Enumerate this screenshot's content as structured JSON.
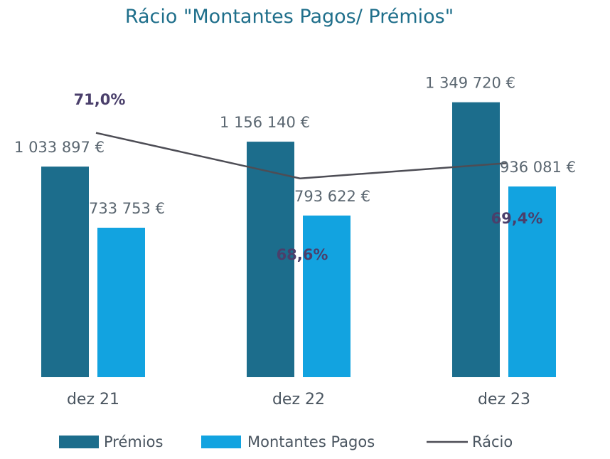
{
  "chart_data": {
    "type": "bar",
    "title": "Rácio \"Montantes Pagos/ Prémios\"",
    "categories": [
      "dez 21",
      "dez 22",
      "dez 23"
    ],
    "series": [
      {
        "name": "Prémios",
        "kind": "bar",
        "color": "#1c6d8c",
        "values": [
          1033897,
          1156140,
          1349720
        ],
        "labels": [
          "1 033 897 €",
          "1 156 140 €",
          "1 349 720 €"
        ]
      },
      {
        "name": "Montantes Pagos",
        "kind": "bar",
        "color": "#12a3e0",
        "values": [
          733753,
          793622,
          936081
        ],
        "labels": [
          "733 753 €",
          "793 622 €",
          "936 081 €"
        ]
      },
      {
        "name": "Rácio",
        "kind": "line",
        "color": "#4d4d55",
        "values": [
          71.0,
          68.6,
          69.4
        ],
        "labels": [
          "71,0%",
          "68,6%",
          "69,4%"
        ]
      }
    ],
    "ylim": [
      0,
      1450000
    ],
    "grid": false,
    "legend": "bottom"
  }
}
